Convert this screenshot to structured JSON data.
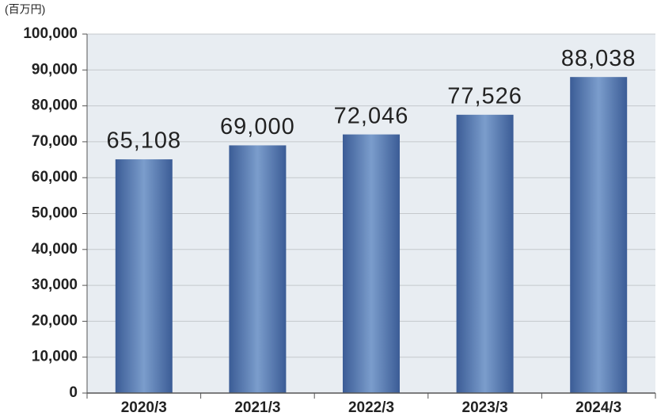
{
  "chart_data": {
    "type": "bar",
    "unit_label": "(百万円)",
    "categories": [
      "2020/3",
      "2021/3",
      "2022/3",
      "2023/3",
      "2024/3"
    ],
    "values": [
      65108,
      69000,
      72046,
      77526,
      88038
    ],
    "value_labels": [
      "65,108",
      "69,000",
      "72,046",
      "77,526",
      "88,038"
    ],
    "color": "#3b5c96",
    "highlight_color": "#7b9dcc",
    "ylim": [
      0,
      100000
    ],
    "yticks": [
      0,
      {
        "value": 10000,
        "label": "10,000"
      },
      {
        "value": 20000,
        "label": "20,000"
      },
      {
        "value": 30000,
        "label": "30,000"
      },
      {
        "value": 40000,
        "label": "40,000"
      },
      {
        "value": 50000,
        "label": "50,000"
      },
      {
        "value": 60000,
        "label": "60,000"
      },
      {
        "value": 70000,
        "label": "70,000"
      },
      {
        "value": 80000,
        "label": "80,000"
      },
      {
        "value": 90000,
        "label": "90,000"
      },
      {
        "value": 100000,
        "label": "100,000"
      }
    ],
    "grid": true
  }
}
